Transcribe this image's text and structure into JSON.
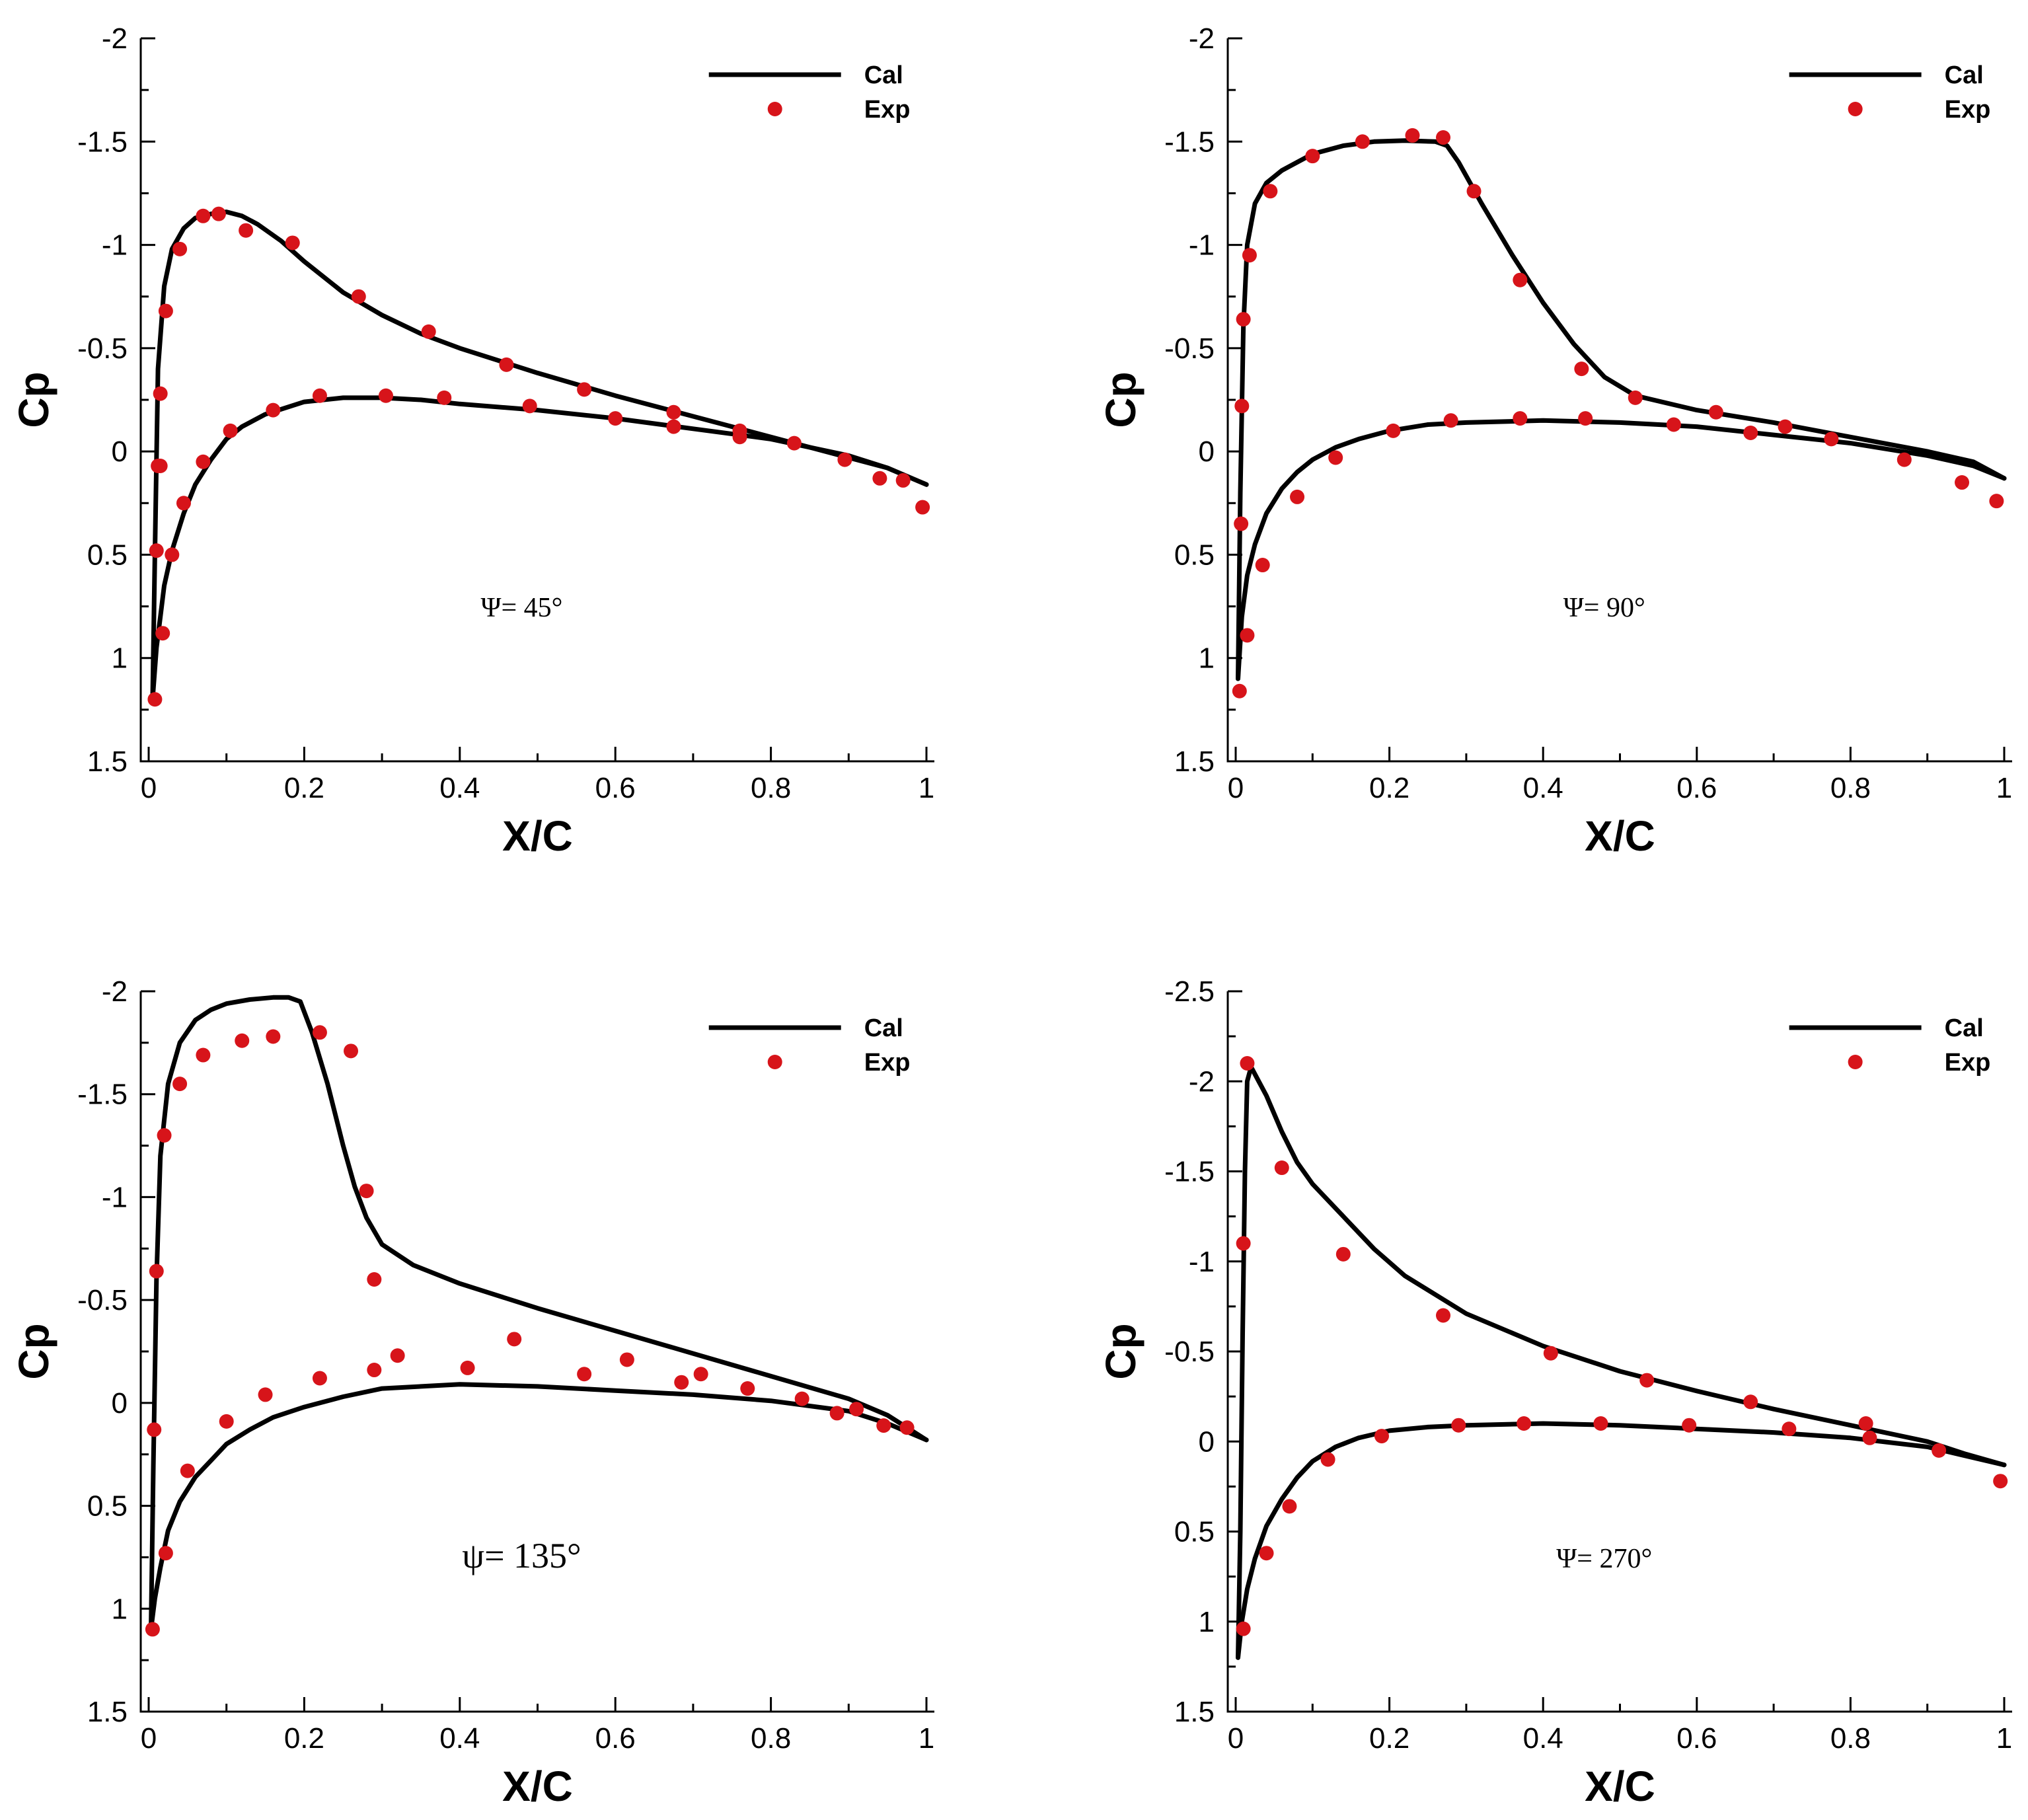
{
  "colors": {
    "curve": "#000000",
    "marker": "#d7141a"
  },
  "chart_data": [
    {
      "type": "line",
      "xlabel": "X/C",
      "ylabel": "Cp",
      "annotation": "Ψ= 45°",
      "annotation_style": "normal",
      "xlim": [
        0,
        1
      ],
      "ylim": [
        1.5,
        -2
      ],
      "x_ticks": [
        0,
        0.2,
        0.4,
        0.6,
        0.8,
        1
      ],
      "x_tick_labels": [
        "0",
        "0.2",
        "0.4",
        "0.6",
        "0.8",
        "1"
      ],
      "y_ticks": [
        -2,
        -1.5,
        -1,
        -0.5,
        0,
        0.5,
        1,
        1.5
      ],
      "y_tick_labels": [
        "-2",
        "-1.5",
        "-1",
        "-0.5",
        "0",
        "0.5",
        "1",
        "1.5"
      ],
      "legend": [
        "Cal",
        "Exp"
      ],
      "series": [
        {
          "name": "Cal",
          "kind": "line",
          "segment": "upper",
          "x": [
            0.005,
            0.008,
            0.012,
            0.02,
            0.03,
            0.045,
            0.06,
            0.08,
            0.1,
            0.12,
            0.14,
            0.17,
            0.2,
            0.25,
            0.3,
            0.35,
            0.4,
            0.5,
            0.6,
            0.7,
            0.8,
            0.9,
            0.95,
            1.0
          ],
          "y": [
            1.2,
            0.5,
            -0.4,
            -0.8,
            -0.98,
            -1.08,
            -1.13,
            -1.15,
            -1.16,
            -1.14,
            -1.1,
            -1.02,
            -0.92,
            -0.77,
            -0.66,
            -0.57,
            -0.5,
            -0.38,
            -0.27,
            -0.17,
            -0.07,
            0.03,
            0.08,
            0.16
          ]
        },
        {
          "name": "Cal",
          "kind": "line",
          "segment": "lower",
          "x": [
            0.005,
            0.01,
            0.015,
            0.02,
            0.03,
            0.045,
            0.06,
            0.08,
            0.1,
            0.12,
            0.15,
            0.2,
            0.25,
            0.3,
            0.35,
            0.4,
            0.5,
            0.6,
            0.7,
            0.8,
            0.9,
            0.95,
            1.0
          ],
          "y": [
            1.2,
            0.95,
            0.8,
            0.65,
            0.48,
            0.3,
            0.16,
            0.04,
            -0.06,
            -0.12,
            -0.18,
            -0.24,
            -0.26,
            -0.26,
            -0.25,
            -0.23,
            -0.2,
            -0.16,
            -0.11,
            -0.06,
            0.02,
            0.08,
            0.16
          ]
        },
        {
          "name": "Exp",
          "kind": "markers",
          "x": [
            0.008,
            0.01,
            0.012,
            0.015,
            0.018,
            0.022,
            0.03,
            0.04,
            0.07,
            0.09,
            0.125,
            0.185,
            0.27,
            0.36,
            0.46,
            0.56,
            0.675,
            0.76,
            0.83,
            0.895,
            0.94,
            0.97,
            0.995,
            0.015,
            0.045,
            0.07,
            0.105,
            0.16,
            0.22,
            0.305,
            0.38,
            0.49,
            0.6,
            0.675,
            0.76
          ],
          "y": [
            1.2,
            0.48,
            0.07,
            -0.28,
            0.88,
            -0.68,
            0.5,
            -0.98,
            -1.14,
            -1.15,
            -1.07,
            -1.01,
            -0.75,
            -0.58,
            -0.42,
            -0.3,
            -0.19,
            -0.1,
            -0.04,
            0.04,
            0.13,
            0.14,
            0.27,
            0.07,
            0.25,
            0.05,
            -0.1,
            -0.2,
            -0.27,
            -0.27,
            -0.26,
            -0.22,
            -0.16,
            -0.12,
            -0.07
          ]
        }
      ]
    },
    {
      "type": "line",
      "xlabel": "X/C",
      "ylabel": "Cp",
      "annotation": "Ψ= 90°",
      "annotation_style": "normal",
      "xlim": [
        0,
        1
      ],
      "ylim": [
        1.5,
        -2
      ],
      "x_ticks": [
        0,
        0.2,
        0.4,
        0.6,
        0.8,
        1
      ],
      "x_tick_labels": [
        "0",
        "0.2",
        "0.4",
        "0.6",
        "0.8",
        "1"
      ],
      "y_ticks": [
        -2,
        -1.5,
        -1,
        -0.5,
        0,
        0.5,
        1,
        1.5
      ],
      "y_tick_labels": [
        "-2",
        "-1.5",
        "-1",
        "-0.5",
        "0",
        "0.5",
        "1",
        "1.5"
      ],
      "legend": [
        "Cal",
        "Exp"
      ],
      "series": [
        {
          "name": "Cal",
          "kind": "line",
          "segment": "upper",
          "x": [
            0.003,
            0.006,
            0.01,
            0.015,
            0.025,
            0.04,
            0.06,
            0.08,
            0.1,
            0.14,
            0.18,
            0.22,
            0.26,
            0.275,
            0.29,
            0.32,
            0.36,
            0.4,
            0.44,
            0.48,
            0.52,
            0.6,
            0.7,
            0.8,
            0.9,
            0.96,
            1.0
          ],
          "y": [
            1.1,
            0.2,
            -0.6,
            -1.0,
            -1.2,
            -1.3,
            -1.36,
            -1.4,
            -1.44,
            -1.48,
            -1.5,
            -1.505,
            -1.5,
            -1.48,
            -1.4,
            -1.2,
            -0.95,
            -0.72,
            -0.52,
            -0.36,
            -0.27,
            -0.2,
            -0.14,
            -0.07,
            0.0,
            0.05,
            0.13
          ]
        },
        {
          "name": "Cal",
          "kind": "line",
          "segment": "lower",
          "x": [
            0.003,
            0.008,
            0.015,
            0.025,
            0.04,
            0.06,
            0.08,
            0.1,
            0.13,
            0.16,
            0.2,
            0.25,
            0.3,
            0.4,
            0.5,
            0.6,
            0.7,
            0.8,
            0.9,
            0.96,
            1.0
          ],
          "y": [
            1.1,
            0.8,
            0.6,
            0.45,
            0.3,
            0.18,
            0.1,
            0.04,
            -0.02,
            -0.06,
            -0.1,
            -0.13,
            -0.14,
            -0.15,
            -0.14,
            -0.12,
            -0.08,
            -0.04,
            0.02,
            0.07,
            0.13
          ]
        },
        {
          "name": "Exp",
          "kind": "markers",
          "x": [
            0.005,
            0.007,
            0.008,
            0.01,
            0.015,
            0.018,
            0.035,
            0.045,
            0.08,
            0.1,
            0.13,
            0.165,
            0.205,
            0.23,
            0.28,
            0.27,
            0.31,
            0.37,
            0.37,
            0.45,
            0.455,
            0.52,
            0.57,
            0.625,
            0.67,
            0.715,
            0.775,
            0.87,
            0.945,
            0.99
          ],
          "y": [
            1.16,
            0.35,
            -0.22,
            -0.64,
            0.89,
            -0.95,
            0.55,
            -1.26,
            0.22,
            -1.43,
            0.03,
            -1.5,
            -0.1,
            -1.53,
            -0.15,
            -1.52,
            -1.26,
            -0.83,
            -0.16,
            -0.4,
            -0.16,
            -0.26,
            -0.13,
            -0.19,
            -0.09,
            -0.12,
            -0.06,
            0.04,
            0.15,
            0.24
          ]
        }
      ]
    },
    {
      "type": "line",
      "xlabel": "X/C",
      "ylabel": "Cp",
      "annotation": "ψ= 135°",
      "annotation_style": "big",
      "xlim": [
        0,
        1
      ],
      "ylim": [
        1.5,
        -2
      ],
      "x_ticks": [
        0,
        0.2,
        0.4,
        0.6,
        0.8,
        1
      ],
      "x_tick_labels": [
        "0",
        "0.2",
        "0.4",
        "0.6",
        "0.8",
        "1"
      ],
      "y_ticks": [
        -2,
        -1.5,
        -1,
        -0.5,
        0,
        0.5,
        1,
        1.5
      ],
      "y_tick_labels": [
        "-2",
        "-1.5",
        "-1",
        "-0.5",
        "0",
        "0.5",
        "1",
        "1.5"
      ],
      "legend": [
        "Cal",
        "Exp"
      ],
      "series": [
        {
          "name": "Cal",
          "kind": "line",
          "segment": "upper",
          "x": [
            0.003,
            0.006,
            0.01,
            0.015,
            0.025,
            0.04,
            0.06,
            0.08,
            0.1,
            0.13,
            0.16,
            0.18,
            0.195,
            0.21,
            0.23,
            0.25,
            0.265,
            0.28,
            0.3,
            0.34,
            0.4,
            0.5,
            0.6,
            0.7,
            0.8,
            0.9,
            0.95,
            1.0
          ],
          "y": [
            1.1,
            0.3,
            -0.6,
            -1.2,
            -1.55,
            -1.75,
            -1.86,
            -1.91,
            -1.94,
            -1.96,
            -1.97,
            -1.97,
            -1.95,
            -1.8,
            -1.55,
            -1.25,
            -1.05,
            -0.9,
            -0.77,
            -0.67,
            -0.58,
            -0.46,
            -0.35,
            -0.24,
            -0.13,
            -0.02,
            0.06,
            0.18
          ]
        },
        {
          "name": "Cal",
          "kind": "line",
          "segment": "lower",
          "x": [
            0.003,
            0.008,
            0.015,
            0.025,
            0.04,
            0.06,
            0.08,
            0.1,
            0.13,
            0.16,
            0.2,
            0.25,
            0.3,
            0.4,
            0.5,
            0.6,
            0.7,
            0.8,
            0.9,
            0.95,
            1.0
          ],
          "y": [
            1.1,
            0.95,
            0.8,
            0.62,
            0.48,
            0.36,
            0.28,
            0.2,
            0.13,
            0.07,
            0.02,
            -0.03,
            -0.07,
            -0.09,
            -0.08,
            -0.06,
            -0.04,
            -0.01,
            0.04,
            0.1,
            0.18
          ]
        },
        {
          "name": "Exp",
          "kind": "markers",
          "x": [
            0.005,
            0.007,
            0.01,
            0.02,
            0.022,
            0.04,
            0.05,
            0.07,
            0.1,
            0.12,
            0.15,
            0.16,
            0.22,
            0.22,
            0.26,
            0.28,
            0.29,
            0.29,
            0.32,
            0.41,
            0.47,
            0.56,
            0.615,
            0.685,
            0.71,
            0.77,
            0.84,
            0.885,
            0.91,
            0.945,
            0.975
          ],
          "y": [
            1.1,
            0.13,
            -0.64,
            -1.3,
            0.73,
            -1.55,
            0.33,
            -1.69,
            0.09,
            -1.76,
            -0.04,
            -1.78,
            -0.12,
            -1.8,
            -1.71,
            -1.03,
            -0.6,
            -0.16,
            -0.23,
            -0.17,
            -0.31,
            -0.14,
            -0.21,
            -0.1,
            -0.14,
            -0.07,
            -0.02,
            0.05,
            0.03,
            0.11,
            0.12
          ]
        }
      ]
    },
    {
      "type": "line",
      "xlabel": "X/C",
      "ylabel": "Cp",
      "annotation": "Ψ= 270°",
      "annotation_style": "normal",
      "xlim": [
        0,
        1
      ],
      "ylim": [
        1.5,
        -2.5
      ],
      "x_ticks": [
        0,
        0.2,
        0.4,
        0.6,
        0.8,
        1
      ],
      "x_tick_labels": [
        "0",
        "0.2",
        "0.4",
        "0.6",
        "0.8",
        "1"
      ],
      "y_ticks": [
        -2.5,
        -2,
        -1.5,
        -1,
        -0.5,
        0,
        0.5,
        1,
        1.5
      ],
      "y_tick_labels": [
        "-2.5",
        "-2",
        "-1.5",
        "-1",
        "-0.5",
        "0",
        "0.5",
        "1",
        "1.5"
      ],
      "legend": [
        "Cal",
        "Exp"
      ],
      "series": [
        {
          "name": "Cal",
          "kind": "line",
          "segment": "upper",
          "x": [
            0.003,
            0.006,
            0.009,
            0.012,
            0.015,
            0.02,
            0.03,
            0.04,
            0.06,
            0.08,
            0.1,
            0.14,
            0.18,
            0.22,
            0.3,
            0.4,
            0.5,
            0.6,
            0.7,
            0.8,
            0.9,
            0.95,
            1.0
          ],
          "y": [
            1.2,
            0.5,
            -0.6,
            -1.5,
            -2.0,
            -2.08,
            -2.0,
            -1.92,
            -1.72,
            -1.55,
            -1.43,
            -1.25,
            -1.07,
            -0.92,
            -0.71,
            -0.53,
            -0.39,
            -0.28,
            -0.18,
            -0.09,
            0.0,
            0.07,
            0.13
          ]
        },
        {
          "name": "Cal",
          "kind": "line",
          "segment": "lower",
          "x": [
            0.003,
            0.008,
            0.015,
            0.025,
            0.04,
            0.06,
            0.08,
            0.1,
            0.13,
            0.16,
            0.2,
            0.25,
            0.3,
            0.4,
            0.5,
            0.6,
            0.7,
            0.8,
            0.9,
            0.95,
            1.0
          ],
          "y": [
            1.2,
            1.0,
            0.82,
            0.65,
            0.47,
            0.32,
            0.2,
            0.11,
            0.03,
            -0.02,
            -0.06,
            -0.08,
            -0.09,
            -0.1,
            -0.09,
            -0.07,
            -0.05,
            -0.02,
            0.03,
            0.08,
            0.13
          ]
        },
        {
          "name": "Exp",
          "kind": "markers",
          "x": [
            0.01,
            0.01,
            0.015,
            0.04,
            0.06,
            0.07,
            0.12,
            0.14,
            0.19,
            0.27,
            0.29,
            0.375,
            0.41,
            0.475,
            0.535,
            0.59,
            0.67,
            0.72,
            0.82,
            0.825,
            0.915,
            0.995
          ],
          "y": [
            1.04,
            -1.1,
            -2.1,
            0.62,
            -1.52,
            0.36,
            0.1,
            -1.04,
            -0.03,
            -0.7,
            -0.09,
            -0.1,
            -0.49,
            -0.1,
            -0.34,
            -0.09,
            -0.22,
            -0.07,
            -0.1,
            -0.02,
            0.05,
            0.22
          ]
        }
      ]
    }
  ]
}
